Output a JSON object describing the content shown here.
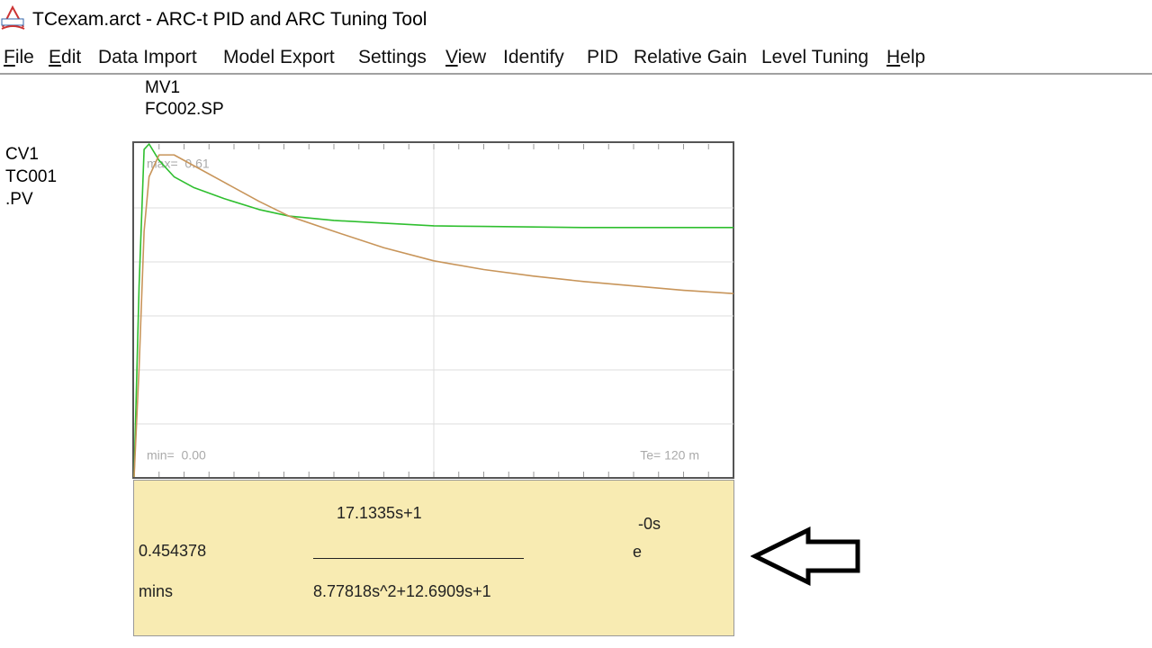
{
  "window": {
    "title": "TCexam.arct - ARC-t PID and ARC Tuning Tool"
  },
  "menu": [
    "File",
    "Edit",
    "Data Import",
    "Model Export",
    "Settings",
    "View",
    "Identify",
    "PID",
    "Relative Gain",
    "Level Tuning",
    "Help"
  ],
  "mv_label": [
    "MV1",
    "FC002.SP"
  ],
  "cv_label": [
    "CV1",
    "TC001",
    ".PV"
  ],
  "chart_data": {
    "type": "line",
    "x": [
      0,
      1,
      2,
      3,
      5,
      8,
      12,
      18,
      25,
      31,
      40,
      50,
      60,
      70,
      80,
      90,
      100,
      110,
      120
    ],
    "xlim": [
      0,
      120
    ],
    "ylim": [
      0,
      0.61
    ],
    "series": [
      {
        "color": "#2fbf2f",
        "values": [
          0,
          0.35,
          0.6,
          0.61,
          0.58,
          0.55,
          0.53,
          0.51,
          0.49,
          0.478,
          0.47,
          0.465,
          0.46,
          0.459,
          0.458,
          0.457,
          0.457,
          0.457,
          0.457
        ]
      },
      {
        "color": "#c8955a",
        "values": [
          0,
          0.2,
          0.45,
          0.55,
          0.59,
          0.59,
          0.57,
          0.54,
          0.505,
          0.478,
          0.45,
          0.42,
          0.396,
          0.38,
          0.368,
          0.358,
          0.35,
          0.342,
          0.336
        ]
      }
    ],
    "annotations": {
      "max": "max=  0.61",
      "min": "min=  0.00",
      "te": "Te= 120 m"
    }
  },
  "model": {
    "gain": "0.454378",
    "units": "mins",
    "numerator": "17.1335s+1",
    "denominator": "8.77818s^2+12.6909s+1",
    "exp_base": "e",
    "exp_power": "-0s"
  }
}
